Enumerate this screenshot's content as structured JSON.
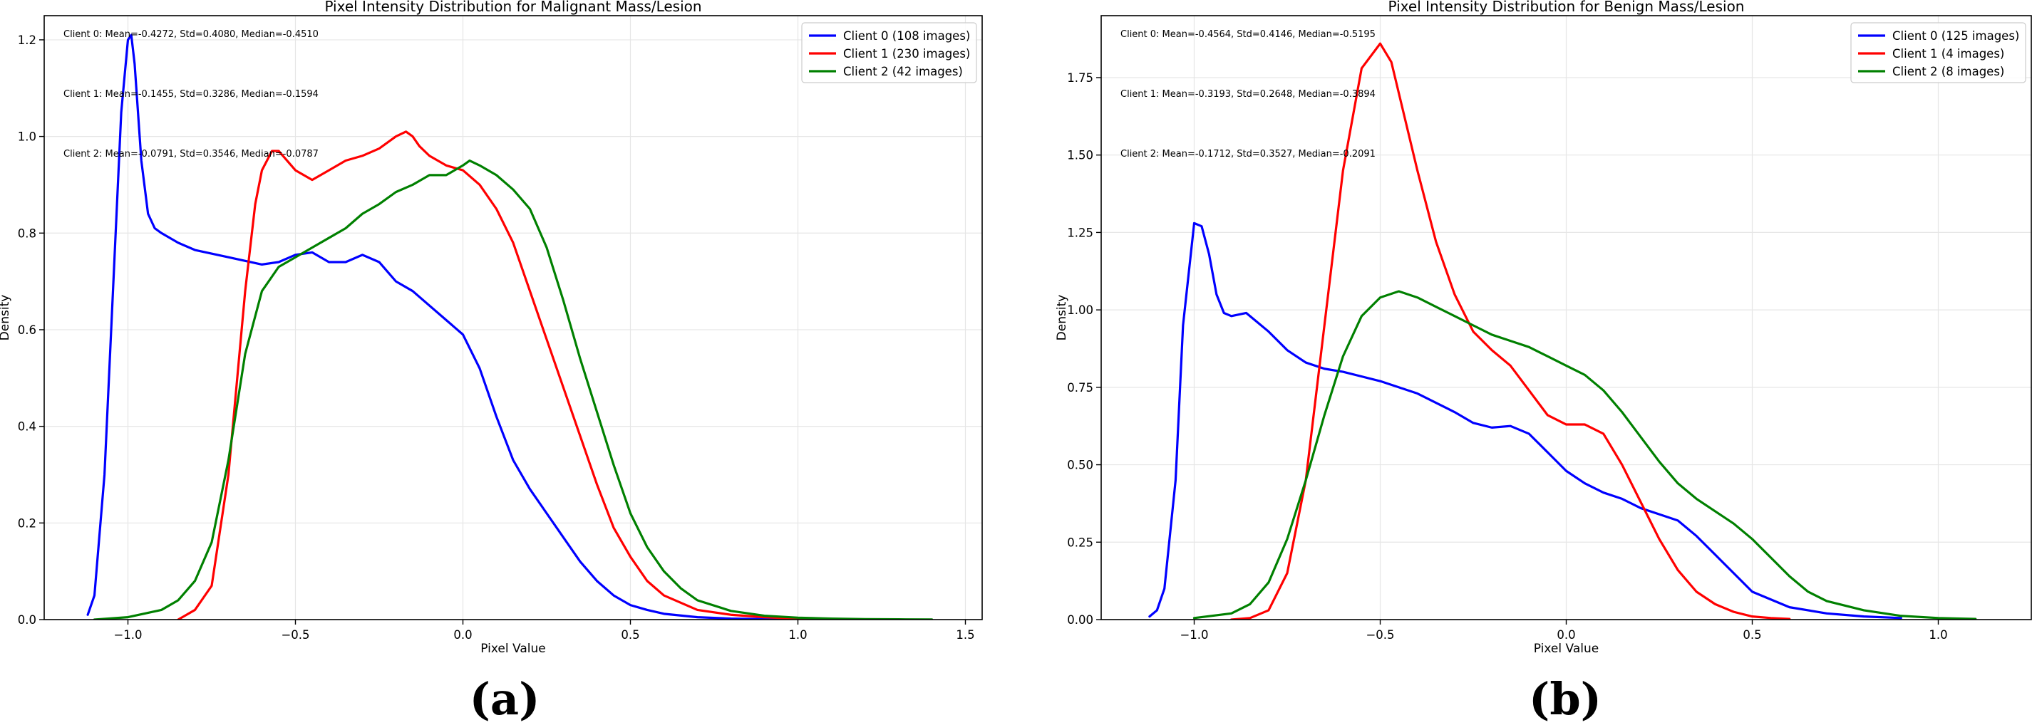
{
  "colors": {
    "client0": "#0000ff",
    "client1": "#ff0000",
    "client2": "#008000",
    "grid": "#e6e6e6",
    "axis": "#000000"
  },
  "panels": [
    {
      "label": "(a)"
    },
    {
      "label": "(b)"
    }
  ],
  "chart_data": [
    {
      "type": "line",
      "title": "Pixel Intensity Distribution for Malignant Mass/Lesion",
      "xlabel": "Pixel Value",
      "ylabel": "Density",
      "xlim": [
        -1.25,
        1.55
      ],
      "ylim": [
        0,
        1.25
      ],
      "xticks": [
        -1.0,
        -0.5,
        0.0,
        0.5,
        1.0,
        1.5
      ],
      "xtick_labels": [
        "−1.0",
        "−0.5",
        "0.0",
        "0.5",
        "1.0",
        "1.5"
      ],
      "yticks": [
        0.0,
        0.2,
        0.4,
        0.6,
        0.8,
        1.0,
        1.2
      ],
      "ytick_labels": [
        "0.0",
        "0.2",
        "0.4",
        "0.6",
        "0.8",
        "1.0",
        "1.2"
      ],
      "grid": true,
      "legend_position": "top-right",
      "annotations": [
        "Client 0: Mean=-0.4272, Std=0.4080, Median=-0.4510",
        "Client 1: Mean=-0.1455, Std=0.3286, Median=-0.1594",
        "Client 2: Mean=-0.0791, Std=0.3546, Median=-0.0787"
      ],
      "series": [
        {
          "name": "Client 0 (108 images)",
          "color": "#0000ff",
          "x": [
            -1.12,
            -1.1,
            -1.07,
            -1.04,
            -1.02,
            -1.0,
            -0.99,
            -0.98,
            -0.96,
            -0.94,
            -0.92,
            -0.9,
            -0.85,
            -0.8,
            -0.7,
            -0.6,
            -0.55,
            -0.5,
            -0.45,
            -0.4,
            -0.35,
            -0.3,
            -0.25,
            -0.2,
            -0.15,
            -0.1,
            -0.05,
            0.0,
            0.05,
            0.1,
            0.15,
            0.2,
            0.25,
            0.3,
            0.35,
            0.4,
            0.45,
            0.5,
            0.55,
            0.6,
            0.7,
            0.8,
            0.9,
            1.0
          ],
          "y": [
            0.01,
            0.05,
            0.3,
            0.75,
            1.05,
            1.2,
            1.21,
            1.15,
            0.95,
            0.84,
            0.81,
            0.8,
            0.78,
            0.765,
            0.75,
            0.735,
            0.74,
            0.755,
            0.76,
            0.74,
            0.74,
            0.755,
            0.74,
            0.7,
            0.68,
            0.65,
            0.62,
            0.59,
            0.52,
            0.42,
            0.33,
            0.27,
            0.22,
            0.17,
            0.12,
            0.08,
            0.05,
            0.03,
            0.02,
            0.012,
            0.005,
            0.002,
            0.001,
            0.0005
          ]
        },
        {
          "name": "Client 1 (230 images)",
          "color": "#ff0000",
          "x": [
            -0.85,
            -0.8,
            -0.75,
            -0.7,
            -0.65,
            -0.62,
            -0.6,
            -0.57,
            -0.55,
            -0.5,
            -0.45,
            -0.4,
            -0.35,
            -0.3,
            -0.25,
            -0.2,
            -0.17,
            -0.15,
            -0.13,
            -0.1,
            -0.05,
            0.0,
            0.05,
            0.1,
            0.15,
            0.2,
            0.25,
            0.3,
            0.35,
            0.4,
            0.45,
            0.5,
            0.55,
            0.6,
            0.7,
            0.8,
            0.9,
            1.0,
            1.1
          ],
          "y": [
            0.0,
            0.02,
            0.07,
            0.3,
            0.68,
            0.86,
            0.93,
            0.97,
            0.97,
            0.93,
            0.91,
            0.93,
            0.95,
            0.96,
            0.975,
            1.0,
            1.01,
            1.0,
            0.98,
            0.96,
            0.94,
            0.93,
            0.9,
            0.85,
            0.78,
            0.68,
            0.58,
            0.48,
            0.38,
            0.28,
            0.19,
            0.13,
            0.08,
            0.05,
            0.02,
            0.01,
            0.005,
            0.002,
            0.001
          ]
        },
        {
          "name": "Client 2 (42 images)",
          "color": "#008000",
          "x": [
            -1.1,
            -1.0,
            -0.9,
            -0.85,
            -0.8,
            -0.75,
            -0.7,
            -0.65,
            -0.6,
            -0.55,
            -0.5,
            -0.45,
            -0.4,
            -0.35,
            -0.3,
            -0.25,
            -0.2,
            -0.15,
            -0.1,
            -0.05,
            0.0,
            0.02,
            0.05,
            0.1,
            0.15,
            0.2,
            0.25,
            0.3,
            0.35,
            0.4,
            0.45,
            0.5,
            0.55,
            0.6,
            0.65,
            0.7,
            0.8,
            0.9,
            1.0,
            1.1,
            1.2,
            1.3,
            1.4
          ],
          "y": [
            0.0,
            0.005,
            0.02,
            0.04,
            0.08,
            0.16,
            0.33,
            0.55,
            0.68,
            0.73,
            0.75,
            0.77,
            0.79,
            0.81,
            0.84,
            0.86,
            0.885,
            0.9,
            0.92,
            0.92,
            0.94,
            0.95,
            0.94,
            0.92,
            0.89,
            0.85,
            0.77,
            0.66,
            0.54,
            0.43,
            0.32,
            0.22,
            0.15,
            0.1,
            0.065,
            0.04,
            0.018,
            0.008,
            0.004,
            0.002,
            0.001,
            0.0005,
            0.0002
          ]
        }
      ]
    },
    {
      "type": "line",
      "title": "Pixel Intensity Distribution for Benign Mass/Lesion",
      "xlabel": "Pixel Value",
      "ylabel": "Density",
      "xlim": [
        -1.25,
        1.25
      ],
      "ylim": [
        0,
        1.95
      ],
      "xticks": [
        -1.0,
        -0.5,
        0.0,
        0.5,
        1.0
      ],
      "xtick_labels": [
        "−1.0",
        "−0.5",
        "0.0",
        "0.5",
        "1.0"
      ],
      "yticks": [
        0.0,
        0.25,
        0.5,
        0.75,
        1.0,
        1.25,
        1.5,
        1.75
      ],
      "ytick_labels": [
        "0.00",
        "0.25",
        "0.50",
        "0.75",
        "1.00",
        "1.25",
        "1.50",
        "1.75"
      ],
      "grid": true,
      "legend_position": "top-right",
      "annotations": [
        "Client 0: Mean=-0.4564, Std=0.4146, Median=-0.5195",
        "Client 1: Mean=-0.3193, Std=0.2648, Median=-0.3894",
        "Client 2: Mean=-0.1712, Std=0.3527, Median=-0.2091"
      ],
      "series": [
        {
          "name": "Client 0 (125 images)",
          "color": "#0000ff",
          "x": [
            -1.12,
            -1.1,
            -1.08,
            -1.05,
            -1.03,
            -1.0,
            -0.98,
            -0.96,
            -0.94,
            -0.92,
            -0.9,
            -0.86,
            -0.8,
            -0.75,
            -0.7,
            -0.65,
            -0.6,
            -0.5,
            -0.4,
            -0.3,
            -0.25,
            -0.2,
            -0.15,
            -0.1,
            -0.05,
            0.0,
            0.05,
            0.1,
            0.15,
            0.2,
            0.25,
            0.3,
            0.35,
            0.4,
            0.45,
            0.5,
            0.6,
            0.7,
            0.8,
            0.9
          ],
          "y": [
            0.01,
            0.03,
            0.1,
            0.45,
            0.95,
            1.28,
            1.27,
            1.18,
            1.05,
            0.99,
            0.98,
            0.99,
            0.93,
            0.87,
            0.83,
            0.81,
            0.8,
            0.77,
            0.73,
            0.67,
            0.635,
            0.62,
            0.625,
            0.6,
            0.54,
            0.48,
            0.44,
            0.41,
            0.39,
            0.36,
            0.34,
            0.32,
            0.27,
            0.21,
            0.15,
            0.09,
            0.04,
            0.02,
            0.01,
            0.005
          ]
        },
        {
          "name": "Client 1 (4 images)",
          "color": "#ff0000",
          "x": [
            -0.9,
            -0.85,
            -0.8,
            -0.75,
            -0.7,
            -0.65,
            -0.6,
            -0.55,
            -0.5,
            -0.47,
            -0.45,
            -0.4,
            -0.35,
            -0.3,
            -0.25,
            -0.2,
            -0.15,
            -0.1,
            -0.05,
            0.0,
            0.05,
            0.1,
            0.15,
            0.2,
            0.25,
            0.3,
            0.35,
            0.4,
            0.45,
            0.5,
            0.55,
            0.6
          ],
          "y": [
            0.0,
            0.005,
            0.03,
            0.15,
            0.45,
            0.95,
            1.45,
            1.78,
            1.86,
            1.8,
            1.7,
            1.45,
            1.22,
            1.05,
            0.93,
            0.87,
            0.82,
            0.74,
            0.66,
            0.63,
            0.63,
            0.6,
            0.5,
            0.38,
            0.26,
            0.16,
            0.09,
            0.05,
            0.025,
            0.01,
            0.005,
            0.002
          ]
        },
        {
          "name": "Client 2 (8 images)",
          "color": "#008000",
          "x": [
            -1.0,
            -0.9,
            -0.85,
            -0.8,
            -0.75,
            -0.7,
            -0.65,
            -0.6,
            -0.55,
            -0.5,
            -0.45,
            -0.4,
            -0.35,
            -0.3,
            -0.25,
            -0.2,
            -0.15,
            -0.1,
            -0.05,
            0.0,
            0.05,
            0.1,
            0.15,
            0.2,
            0.25,
            0.3,
            0.35,
            0.4,
            0.45,
            0.5,
            0.55,
            0.6,
            0.65,
            0.7,
            0.8,
            0.9,
            1.0,
            1.1
          ],
          "y": [
            0.005,
            0.02,
            0.05,
            0.12,
            0.26,
            0.45,
            0.66,
            0.85,
            0.98,
            1.04,
            1.06,
            1.04,
            1.01,
            0.98,
            0.95,
            0.92,
            0.9,
            0.88,
            0.85,
            0.82,
            0.79,
            0.74,
            0.67,
            0.59,
            0.51,
            0.44,
            0.39,
            0.35,
            0.31,
            0.26,
            0.2,
            0.14,
            0.09,
            0.06,
            0.03,
            0.012,
            0.005,
            0.002
          ]
        }
      ]
    }
  ]
}
